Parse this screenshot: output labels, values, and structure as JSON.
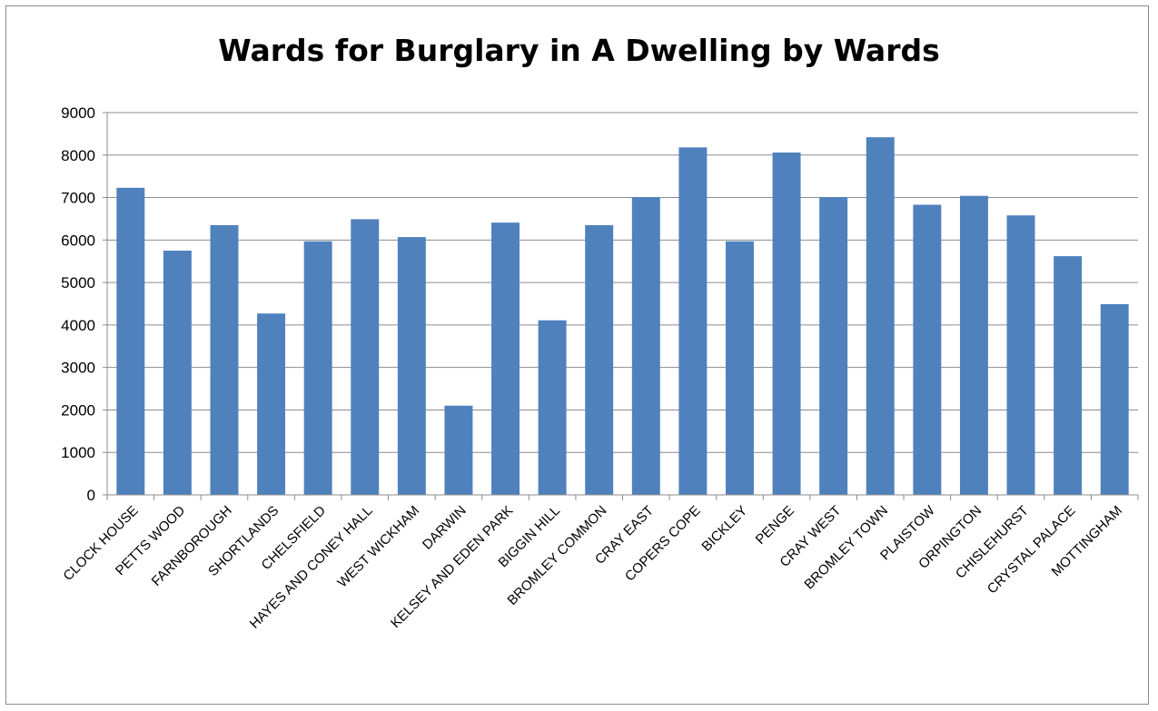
{
  "chart_data": {
    "type": "bar",
    "title": "Wards for Burglary in A Dwelling by Wards",
    "xlabel": "",
    "ylabel": "",
    "ylim": [
      0,
      9000
    ],
    "ytick_step": 1000,
    "yticks": [
      "0",
      "1000",
      "2000",
      "3000",
      "4000",
      "5000",
      "6000",
      "7000",
      "8000",
      "9000"
    ],
    "grid": true,
    "legend": "none",
    "bar_color": "#4f81bd",
    "categories": [
      "CLOCK HOUSE",
      "PETTS WOOD",
      "FARNBOROUGH",
      "SHORTLANDS",
      "CHELSFIELD",
      "HAYES AND CONEY HALL",
      "WEST WICKHAM",
      "DARWIN",
      "KELSEY AND EDEN PARK",
      "BIGGIN HILL",
      "BROMLEY COMMON",
      "CRAY EAST",
      "COPERS COPE",
      "BICKLEY",
      "PENGE",
      "CRAY WEST",
      "BROMLEY TOWN",
      "PLAISTOW",
      "ORPINGTON",
      "CHISLEHURST",
      "CRYSTAL PALACE",
      "MOTTINGHAM"
    ],
    "values": [
      7230,
      5750,
      6350,
      4270,
      5970,
      6490,
      6070,
      2100,
      6410,
      4110,
      6350,
      7010,
      8180,
      5970,
      8060,
      7010,
      8420,
      6830,
      7040,
      6580,
      5620,
      4490
    ]
  }
}
